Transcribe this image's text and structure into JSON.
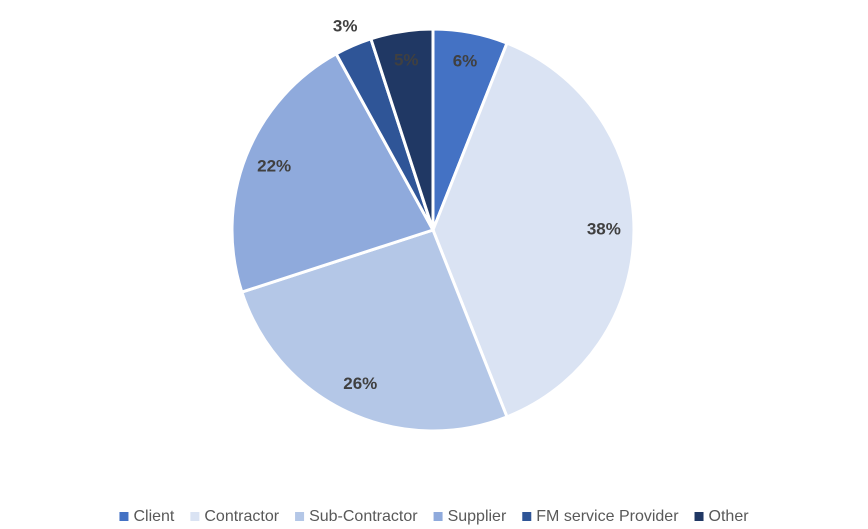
{
  "chart_data": {
    "type": "pie",
    "categories": [
      "Client",
      "Contractor",
      "Sub-Contractor",
      "Supplier",
      "FM service Provider",
      "Other"
    ],
    "values": [
      6,
      38,
      26,
      22,
      3,
      5
    ],
    "value_labels": [
      "6%",
      "38%",
      "26%",
      "22%",
      "3%",
      "5%"
    ],
    "colors": [
      "#4472c4",
      "#dae3f3",
      "#b4c7e7",
      "#8faadc",
      "#2f5597",
      "#203864"
    ],
    "legend": "bottom"
  }
}
